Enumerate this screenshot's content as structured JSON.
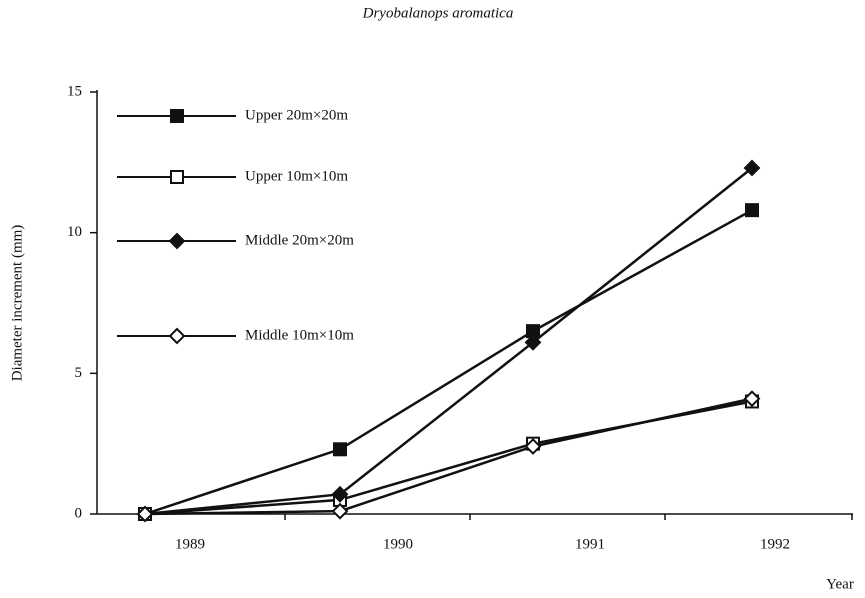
{
  "chart_data": {
    "type": "line",
    "title": "Dryobalanops aromatica",
    "x_label": "Year",
    "y_label": "Diameter increment (mm)",
    "categories": [
      "1989",
      "1990",
      "1991",
      "1992"
    ],
    "ylim": [
      0,
      15
    ],
    "yticks": [
      0,
      5,
      10,
      15
    ],
    "series": [
      {
        "name": "Upper 20m×20m",
        "color": "#111111",
        "marker": "filled-square",
        "values": [
          0,
          2.3,
          6.5,
          10.8
        ]
      },
      {
        "name": "Upper 10m×10m",
        "color": "#111111",
        "marker": "open-square",
        "values": [
          0,
          0.5,
          2.5,
          4.0
        ]
      },
      {
        "name": "Middle 20m×20m",
        "color": "#111111",
        "marker": "filled-diamond",
        "values": [
          0,
          0.7,
          6.1,
          12.3
        ]
      },
      {
        "name": "Middle 10m×10m",
        "color": "#111111",
        "marker": "open-diamond",
        "values": [
          0,
          0.1,
          2.4,
          4.1
        ]
      }
    ]
  }
}
